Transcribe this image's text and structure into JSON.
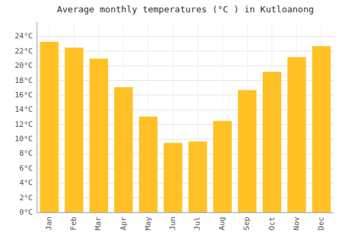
{
  "chart_data": {
    "type": "bar",
    "title": "Average monthly temperatures (°C ) in Kutloanong",
    "categories": [
      "Jan",
      "Feb",
      "Mar",
      "Apr",
      "May",
      "Jun",
      "Jul",
      "Aug",
      "Sep",
      "Oct",
      "Nov",
      "Dec"
    ],
    "values": [
      23.3,
      22.5,
      21.0,
      17.1,
      13.1,
      9.5,
      9.7,
      12.5,
      16.7,
      19.2,
      21.2,
      22.7
    ],
    "color": "#FFC125",
    "ylim": [
      0,
      26
    ],
    "yticks": [
      {
        "value": 0,
        "label": "0°C"
      },
      {
        "value": 2,
        "label": "2°C"
      },
      {
        "value": 4,
        "label": "4°C"
      },
      {
        "value": 6,
        "label": "6°C"
      },
      {
        "value": 8,
        "label": "8°C"
      },
      {
        "value": 10,
        "label": "10°C"
      },
      {
        "value": 12,
        "label": "12°C"
      },
      {
        "value": 14,
        "label": "14°C"
      },
      {
        "value": 16,
        "label": "16°C"
      },
      {
        "value": 18,
        "label": "18°C"
      },
      {
        "value": 20,
        "label": "20°C"
      },
      {
        "value": 22,
        "label": "22°C"
      },
      {
        "value": 24,
        "label": "24°C"
      }
    ],
    "grid": true
  }
}
